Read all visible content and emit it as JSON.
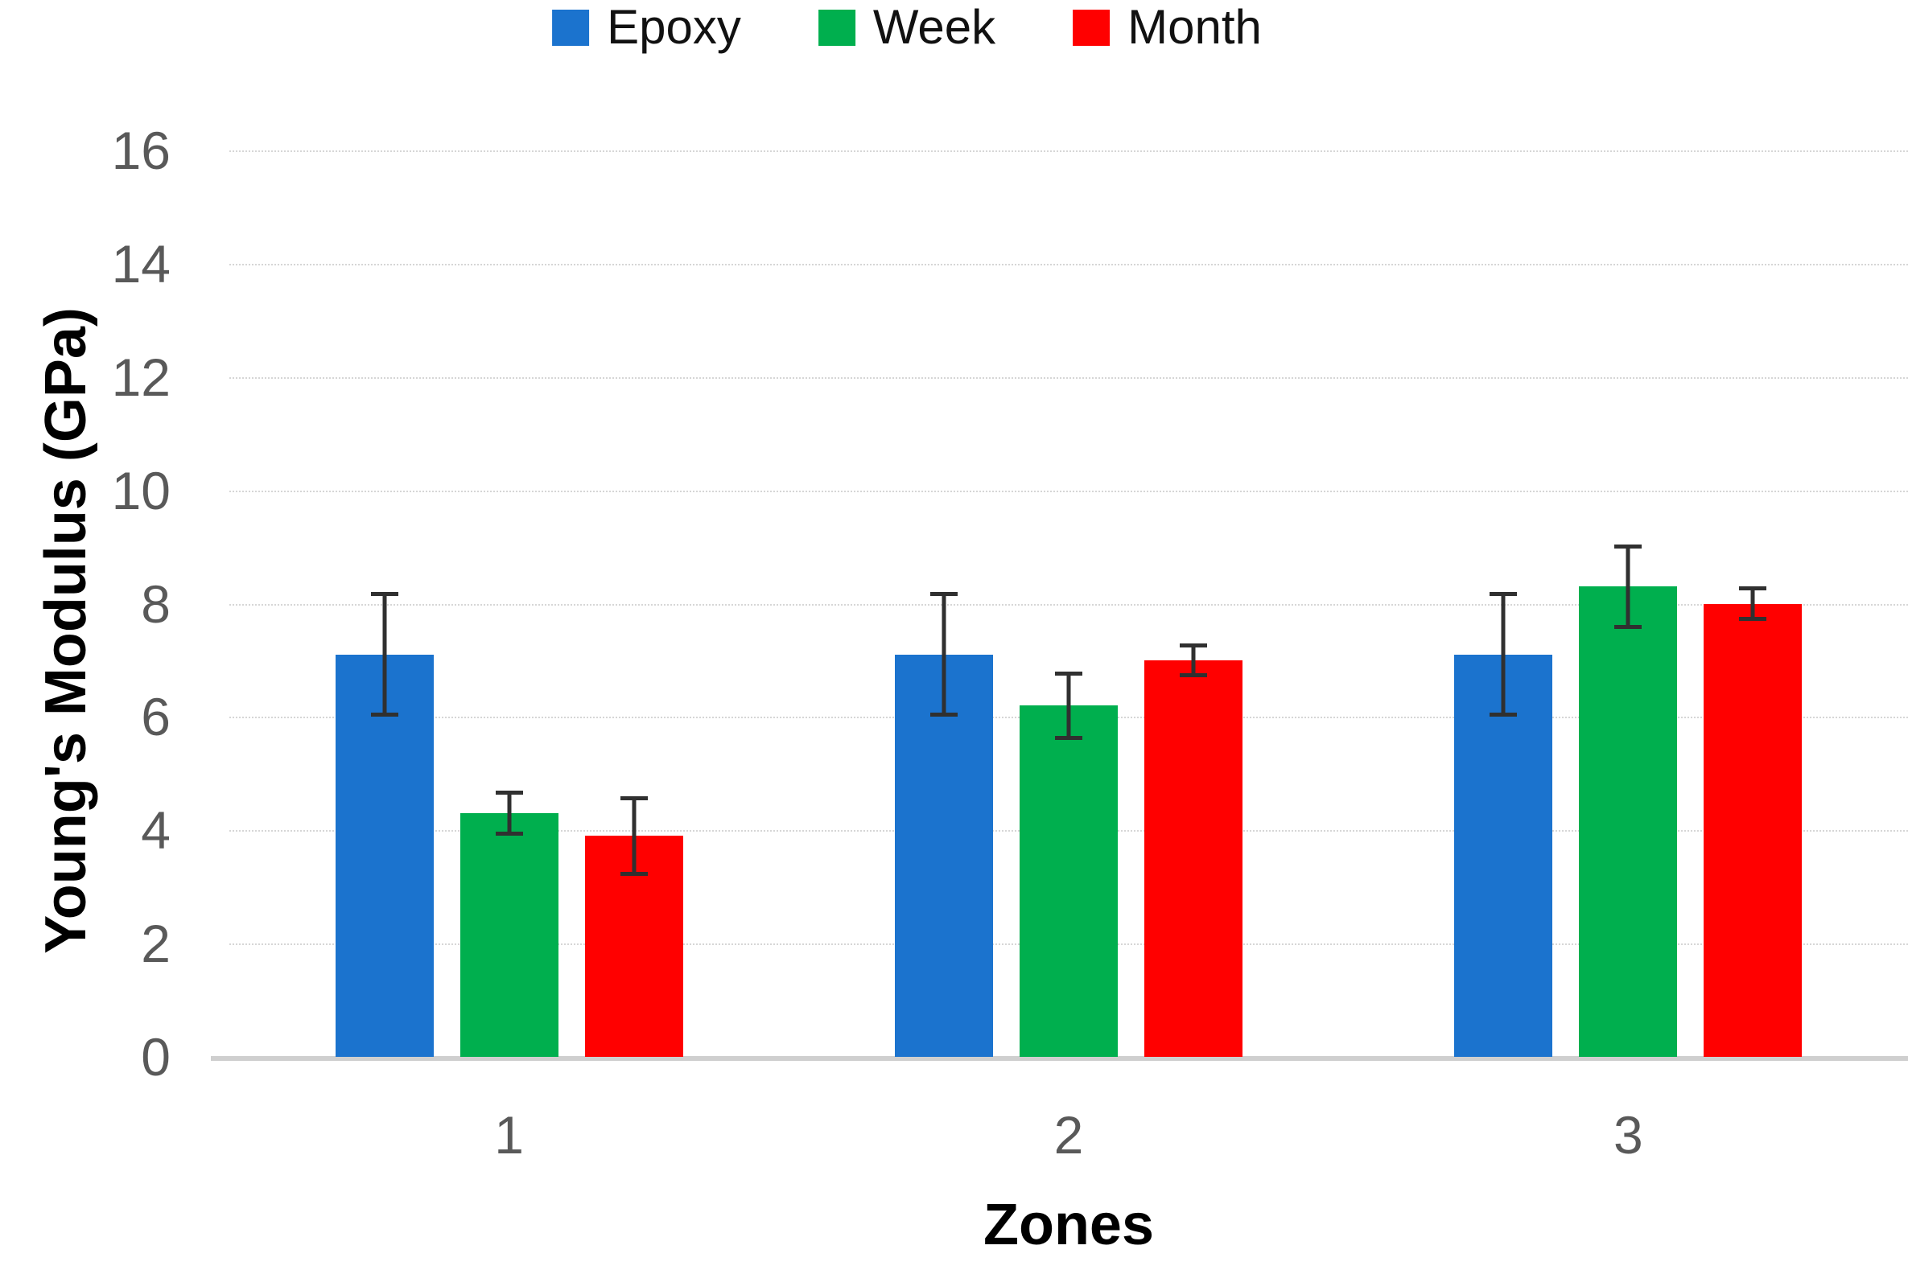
{
  "chart_data": {
    "type": "bar",
    "title": "",
    "categories": [
      "1",
      "2",
      "3"
    ],
    "series": [
      {
        "name": "Epoxy",
        "color": "#1B73CE",
        "values": [
          7.1,
          7.1,
          7.1
        ],
        "errors": [
          1.1,
          1.1,
          1.1
        ]
      },
      {
        "name": "Week",
        "color": "#00AF4E",
        "values": [
          4.3,
          6.2,
          8.3
        ],
        "errors": [
          0.4,
          0.6,
          0.75
        ]
      },
      {
        "name": "Month",
        "color": "#FF0000",
        "values": [
          3.9,
          7.0,
          8.0
        ],
        "errors": [
          0.7,
          0.3,
          0.3
        ]
      }
    ],
    "xlabel": "Zones",
    "ylabel": "Young's Modulus (GPa)",
    "ylim": [
      0,
      16
    ],
    "ytick_step": 2,
    "yticks": [
      "0",
      "2",
      "4",
      "6",
      "8",
      "10",
      "12",
      "14",
      "16"
    ],
    "grid": true,
    "legend_position": "top",
    "error_bar_color": "#303030",
    "tick_color": "#595959"
  }
}
